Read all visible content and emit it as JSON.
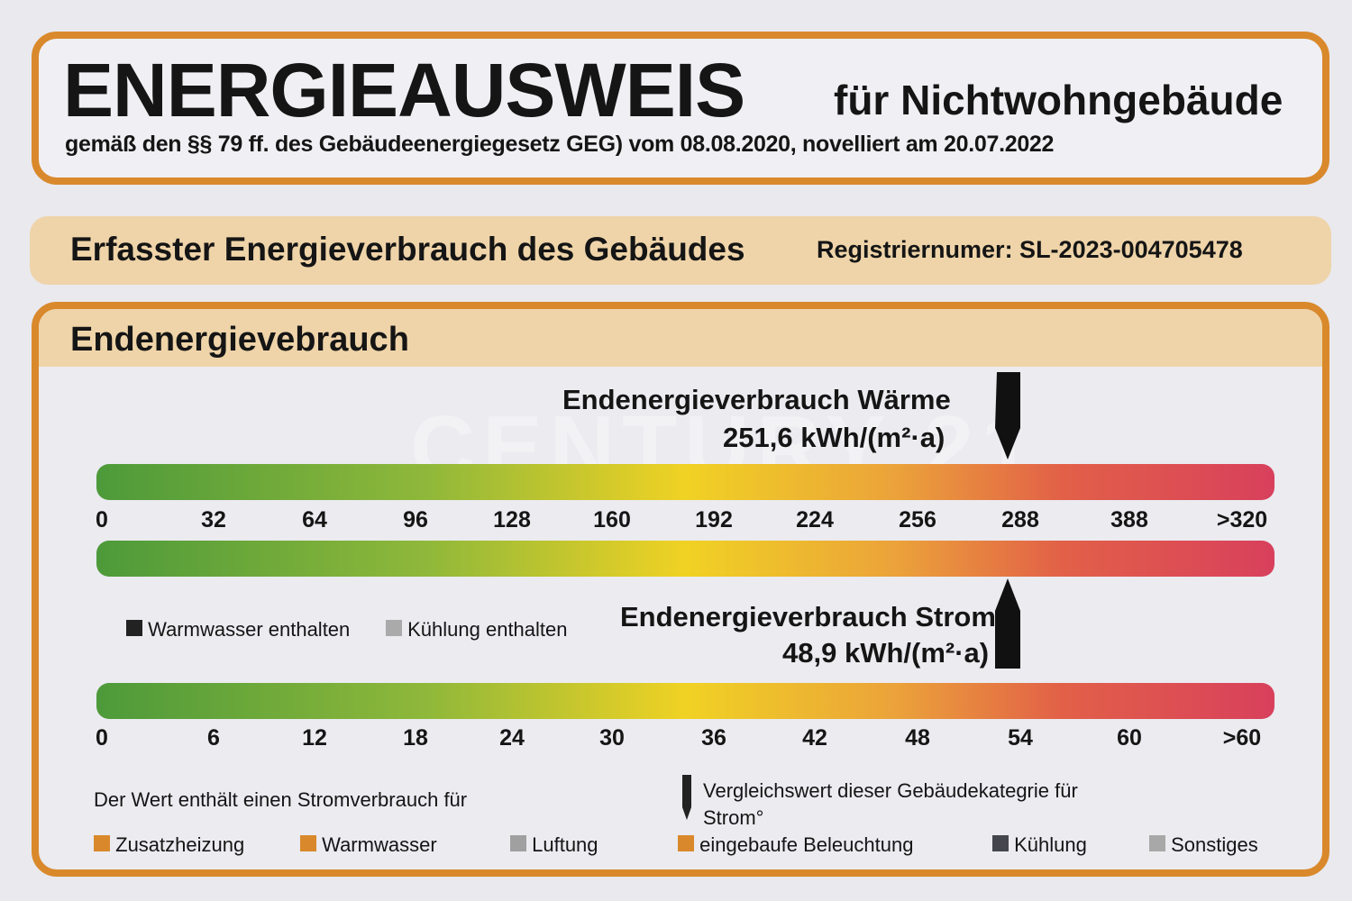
{
  "header": {
    "title": "ENERGIEAUSWEIS",
    "title_suffix": "für Nichtwohngebäude",
    "subtitle": "gemäß den §§ 79 ff. des Gebäudeenergiegesetz GEG) vom 08.08.2020, novelliert am 20.07.2022"
  },
  "section": {
    "title": "Erfasster Energieverbrauch des Gebäudes",
    "registration": "Registriernumer: SL-2023-004705478"
  },
  "panel": {
    "title": "Endenergievebrauch",
    "waerme": {
      "label": "Endenergieverbrauch Wärme",
      "value": "251,6 kWh/(m²·a)",
      "marker_position": 280,
      "ticks": [
        "0",
        "32",
        "64",
        "96",
        "128",
        "160",
        "192",
        "224",
        "256",
        "288",
        "388",
        ">320"
      ]
    },
    "strom": {
      "label": "Endenergieverbrauch Strom",
      "value": "48,9 kWh/(m²·a)",
      "marker_position": 54,
      "ticks": [
        "0",
        "6",
        "12",
        "18",
        "24",
        "30",
        "36",
        "42",
        "48",
        "54",
        "60",
        ">60"
      ]
    },
    "legend_top": [
      {
        "label": "Warmwasser enthalten",
        "color": "#222222"
      },
      {
        "label": "Kühlung enthalten",
        "color": "#aaaaaa"
      }
    ],
    "note": "Der Wert enthält einen Stromverbrauch für",
    "comparison": "Vergleichswert dieser Gebäudekategrie für Strom°",
    "categories": [
      {
        "label": "Zusatzheizung",
        "color": "#d9892b"
      },
      {
        "label": "Warmwasser",
        "color": "#d9892b"
      },
      {
        "label": "Luftung",
        "color": "#a0a0a0"
      },
      {
        "label": "eingebaufe Beleuchtung",
        "color": "#d9892b"
      },
      {
        "label": "Kühlung",
        "color": "#45454d"
      },
      {
        "label": "Sonstiges",
        "color": "#a8a8a8"
      }
    ]
  },
  "watermark": "CENTURY 21",
  "colors": {
    "accent": "#d9892b",
    "band": "#efd4a9"
  }
}
